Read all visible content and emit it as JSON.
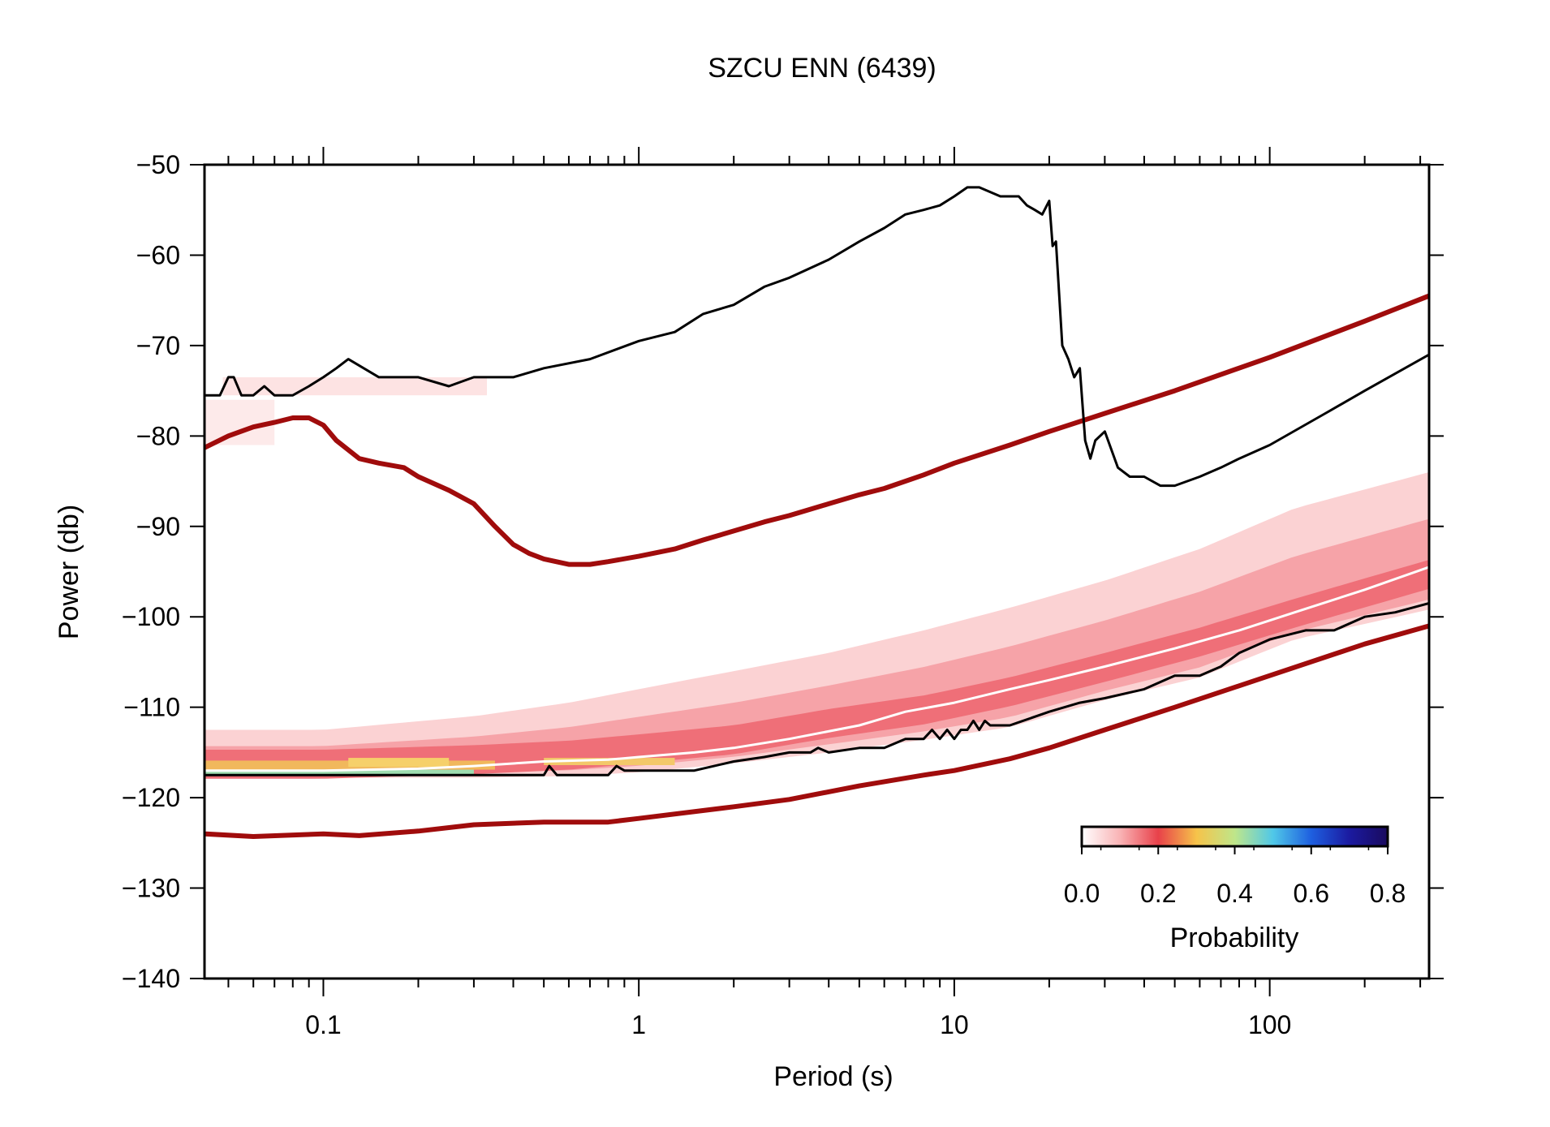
{
  "chart_data": {
    "type": "line",
    "title": "SZCU ENN (6439)",
    "xlabel": "Period (s)",
    "ylabel": "Power (db)",
    "x_scale": "log",
    "xlim": [
      0.042,
      320
    ],
    "ylim": [
      -140,
      -50
    ],
    "x_ticks": [
      {
        "value": 0.1,
        "label": "0.1"
      },
      {
        "value": 1,
        "label": "1"
      },
      {
        "value": 10,
        "label": "10"
      },
      {
        "value": 100,
        "label": "100"
      }
    ],
    "y_ticks": [
      {
        "value": -50,
        "label": "−50"
      },
      {
        "value": -60,
        "label": "−60"
      },
      {
        "value": -70,
        "label": "−70"
      },
      {
        "value": -80,
        "label": "−80"
      },
      {
        "value": -90,
        "label": "−90"
      },
      {
        "value": -100,
        "label": "−100"
      },
      {
        "value": -110,
        "label": "−110"
      },
      {
        "value": -120,
        "label": "−120"
      },
      {
        "value": -130,
        "label": "−130"
      },
      {
        "value": -140,
        "label": "−140"
      }
    ],
    "grid": false,
    "colorbar": {
      "label": "Probability",
      "position": "bottom-right",
      "range": [
        0,
        0.8
      ],
      "ticks": [
        "0.0",
        "0.2",
        "0.4",
        "0.6",
        "0.8"
      ],
      "colors": [
        "#ffffff",
        "#f9b3b5",
        "#e8414a",
        "#f6c34a",
        "#bfe68a",
        "#50c8e8",
        "#1e5fe0",
        "#1b1aa0",
        "#1a0a5e"
      ]
    },
    "series": [
      {
        "role": "new-high-noise-model",
        "color": "#a00c0c",
        "x": [
          0.042,
          0.05,
          0.06,
          0.07,
          0.08,
          0.09,
          0.1,
          0.11,
          0.13,
          0.15,
          0.18,
          0.2,
          0.25,
          0.3,
          0.35,
          0.4,
          0.45,
          0.5,
          0.6,
          0.7,
          0.8,
          1.0,
          1.3,
          1.6,
          2.0,
          2.5,
          3.0,
          4.0,
          5.0,
          6.0,
          8.0,
          10.0,
          15.0,
          20.0,
          30.0,
          50.0,
          100.0,
          200.0,
          320.0
        ],
        "y": [
          -81.3,
          -80.0,
          -79.0,
          -78.5,
          -78.0,
          -78.0,
          -78.8,
          -80.5,
          -82.5,
          -83.0,
          -83.5,
          -84.5,
          -86.0,
          -87.5,
          -90.0,
          -92.0,
          -93.0,
          -93.6,
          -94.2,
          -94.2,
          -93.9,
          -93.3,
          -92.5,
          -91.5,
          -90.5,
          -89.5,
          -88.8,
          -87.5,
          -86.5,
          -85.8,
          -84.3,
          -83.0,
          -81.0,
          -79.5,
          -77.5,
          -75.0,
          -71.3,
          -67.3,
          -64.5
        ]
      },
      {
        "role": "new-low-noise-model",
        "color": "#a00c0c",
        "x": [
          0.042,
          0.06,
          0.1,
          0.13,
          0.2,
          0.3,
          0.5,
          0.8,
          1.0,
          2.0,
          3.0,
          5.0,
          8.0,
          10.0,
          15.0,
          20.0,
          30.0,
          50.0,
          100.0,
          200.0,
          320.0
        ],
        "y": [
          -124.0,
          -124.3,
          -124.0,
          -124.2,
          -123.7,
          -123.0,
          -122.7,
          -122.7,
          -122.3,
          -121.0,
          -120.2,
          -118.7,
          -117.5,
          -117.0,
          -115.7,
          -114.5,
          -112.5,
          -110.0,
          -106.5,
          -103.0,
          -101.0
        ]
      },
      {
        "role": "maximum",
        "color": "#000000",
        "x": [
          0.042,
          0.047,
          0.05,
          0.052,
          0.055,
          0.06,
          0.065,
          0.07,
          0.08,
          0.09,
          0.1,
          0.11,
          0.12,
          0.15,
          0.2,
          0.25,
          0.3,
          0.4,
          0.5,
          0.7,
          1.0,
          1.3,
          1.6,
          2.0,
          2.5,
          3.0,
          4.0,
          5.0,
          6.0,
          7.0,
          8.0,
          9.0,
          10.0,
          11.0,
          12.0,
          14.0,
          16.0,
          17.0,
          18.0,
          19.0,
          20.0,
          20.5,
          21.0,
          22.0,
          23.0,
          24.0,
          25.0,
          26.0,
          27.0,
          28.0,
          30.0,
          33.0,
          36.0,
          40.0,
          45.0,
          50.0,
          60.0,
          70.0,
          80.0,
          100.0,
          150.0,
          200.0,
          320.0
        ],
        "y": [
          -75.5,
          -75.5,
          -73.5,
          -73.5,
          -75.5,
          -75.5,
          -74.5,
          -75.5,
          -75.5,
          -74.5,
          -73.5,
          -72.5,
          -71.5,
          -73.5,
          -73.5,
          -74.5,
          -73.5,
          -73.5,
          -72.5,
          -71.5,
          -69.5,
          -68.5,
          -66.5,
          -65.5,
          -63.5,
          -62.5,
          -60.5,
          -58.5,
          -57.0,
          -55.5,
          -55.0,
          -54.5,
          -53.5,
          -52.5,
          -52.5,
          -53.5,
          -53.5,
          -54.5,
          -55.0,
          -55.5,
          -54.0,
          -59.0,
          -58.5,
          -70.0,
          -71.5,
          -73.5,
          -72.5,
          -80.5,
          -82.5,
          -80.5,
          -79.5,
          -83.5,
          -84.5,
          -84.5,
          -85.5,
          -85.5,
          -84.5,
          -83.5,
          -82.5,
          -81.0,
          -77.5,
          -75.0,
          -71.0
        ]
      },
      {
        "role": "minimum",
        "color": "#000000",
        "x": [
          0.042,
          0.1,
          0.2,
          0.3,
          0.5,
          0.52,
          0.55,
          0.8,
          0.85,
          0.9,
          1.0,
          1.5,
          2.0,
          2.5,
          3.0,
          3.5,
          3.7,
          4.0,
          5.0,
          6.0,
          7.0,
          8.0,
          8.5,
          9.0,
          9.5,
          10.0,
          10.5,
          11.0,
          11.5,
          12.0,
          12.5,
          13.0,
          14.0,
          15.0,
          20.0,
          25.0,
          30.0,
          40.0,
          50.0,
          60.0,
          70.0,
          80.0,
          100.0,
          130.0,
          160.0,
          200.0,
          250.0,
          320.0
        ],
        "y": [
          -117.5,
          -117.5,
          -117.5,
          -117.5,
          -117.5,
          -116.5,
          -117.5,
          -117.5,
          -116.5,
          -117.0,
          -117.0,
          -117.0,
          -116.0,
          -115.5,
          -115.0,
          -115.0,
          -114.5,
          -115.0,
          -114.5,
          -114.5,
          -113.5,
          -113.5,
          -112.5,
          -113.5,
          -112.5,
          -113.5,
          -112.5,
          -112.5,
          -111.5,
          -112.5,
          -111.5,
          -112.0,
          -112.0,
          -112.0,
          -110.5,
          -109.5,
          -109.0,
          -108.0,
          -106.5,
          -106.5,
          -105.5,
          -104.0,
          -102.5,
          -101.5,
          -101.5,
          -100.0,
          -99.5,
          -98.5
        ]
      },
      {
        "role": "mode",
        "color": "#ffffff",
        "x": [
          0.042,
          0.1,
          0.2,
          0.3,
          0.5,
          0.8,
          1.0,
          1.5,
          2.0,
          3.0,
          5.0,
          7.0,
          10.0,
          15.0,
          20.0,
          30.0,
          50.0,
          80.0,
          120.0,
          200.0,
          320.0
        ],
        "y": [
          -117.0,
          -117.0,
          -116.8,
          -116.5,
          -116.0,
          -115.8,
          -115.5,
          -115.0,
          -114.5,
          -113.5,
          -112.0,
          -110.5,
          -109.5,
          -108.0,
          -107.0,
          -105.5,
          -103.5,
          -101.5,
          -99.5,
          -97.0,
          -94.5
        ]
      }
    ],
    "pdf_density": {
      "description_bands": "probability density cloud",
      "band": [
        {
          "x": 0.042,
          "lo": -117.8,
          "hi": -112.5,
          "peak": -116.5
        },
        {
          "x": 0.1,
          "lo": -117.8,
          "hi": -112.5,
          "peak": -116.5
        },
        {
          "x": 0.3,
          "lo": -117.8,
          "hi": -111.0,
          "peak": -116.0
        },
        {
          "x": 0.6,
          "lo": -117.6,
          "hi": -109.5,
          "peak": -115.5
        },
        {
          "x": 1.0,
          "lo": -117.2,
          "hi": -108.0,
          "peak": -114.8
        },
        {
          "x": 2.0,
          "lo": -116.2,
          "hi": -106.0,
          "peak": -113.8
        },
        {
          "x": 4.0,
          "lo": -115.0,
          "hi": -104.0,
          "peak": -112.0
        },
        {
          "x": 8.0,
          "lo": -113.6,
          "hi": -101.5,
          "peak": -110.5
        },
        {
          "x": 15.0,
          "lo": -112.2,
          "hi": -99.0,
          "peak": -108.5
        },
        {
          "x": 30.0,
          "lo": -109.2,
          "hi": -96.0,
          "peak": -105.8
        },
        {
          "x": 60.0,
          "lo": -106.7,
          "hi": -92.5,
          "peak": -103.0
        },
        {
          "x": 120.0,
          "lo": -102.5,
          "hi": -88.0,
          "peak": -99.8
        },
        {
          "x": 320.0,
          "lo": -99.2,
          "hi": -84.0,
          "peak": -95.5
        }
      ]
    }
  }
}
